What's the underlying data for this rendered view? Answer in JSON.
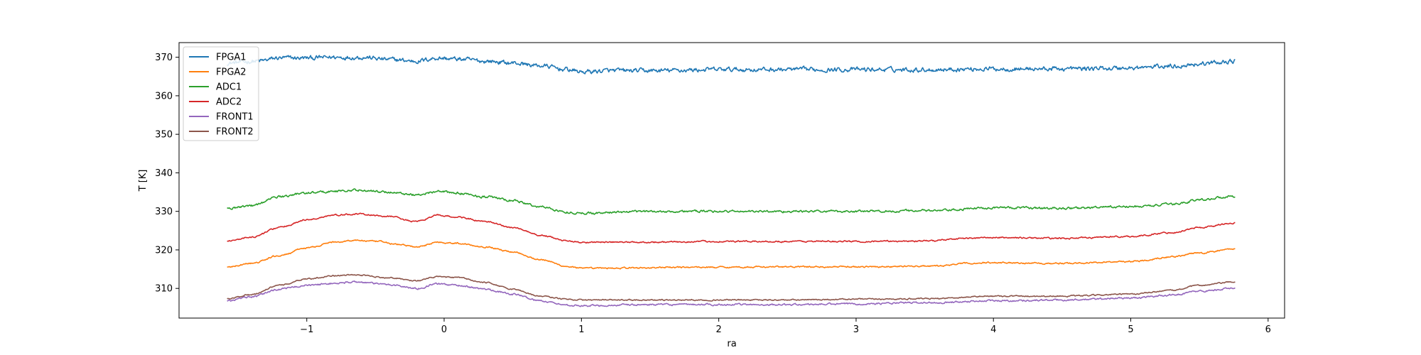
{
  "chart_data": {
    "type": "line",
    "title": "",
    "xlabel": "ra",
    "ylabel": "T [K]",
    "xlim": [
      -1.93,
      6.12
    ],
    "ylim": [
      302.3,
      373.8
    ],
    "xticks": [
      -1,
      0,
      1,
      2,
      3,
      4,
      5,
      6
    ],
    "yticks": [
      310,
      320,
      330,
      340,
      350,
      360,
      370
    ],
    "xtick_labels": [
      "−1",
      "0",
      "1",
      "2",
      "3",
      "4",
      "5",
      "6"
    ],
    "ytick_labels": [
      "310",
      "320",
      "330",
      "340",
      "350",
      "360",
      "370"
    ],
    "legend_position": "top-left",
    "grid": false,
    "x_range": [
      -1.58,
      5.76
    ],
    "series": [
      {
        "name": "FPGA1",
        "color": "#1f77b4",
        "noise": 0.9,
        "points": [
          [
            -1.58,
            368.5
          ],
          [
            -1.35,
            369.0
          ],
          [
            -1.2,
            369.8
          ],
          [
            -1.0,
            369.8
          ],
          [
            -0.8,
            370.0
          ],
          [
            -0.6,
            370.0
          ],
          [
            -0.4,
            369.4
          ],
          [
            -0.2,
            369.0
          ],
          [
            -0.05,
            369.8
          ],
          [
            0.1,
            369.5
          ],
          [
            0.3,
            369.0
          ],
          [
            0.5,
            368.5
          ],
          [
            0.7,
            367.8
          ],
          [
            0.9,
            366.8
          ],
          [
            1.0,
            366.2
          ],
          [
            1.2,
            366.5
          ],
          [
            1.5,
            366.5
          ],
          [
            2.0,
            366.8
          ],
          [
            2.5,
            366.8
          ],
          [
            3.0,
            366.8
          ],
          [
            3.5,
            366.8
          ],
          [
            4.0,
            367.0
          ],
          [
            4.5,
            367.0
          ],
          [
            5.0,
            367.2
          ],
          [
            5.3,
            367.7
          ],
          [
            5.5,
            368.3
          ],
          [
            5.76,
            369.0
          ]
        ]
      },
      {
        "name": "FPGA2",
        "color": "#ff7f0e",
        "noise": 0.3,
        "points": [
          [
            -1.58,
            315.5
          ],
          [
            -1.4,
            316.5
          ],
          [
            -1.2,
            318.5
          ],
          [
            -1.0,
            320.5
          ],
          [
            -0.8,
            322.0
          ],
          [
            -0.65,
            322.5
          ],
          [
            -0.5,
            322.2
          ],
          [
            -0.3,
            321.3
          ],
          [
            -0.2,
            320.7
          ],
          [
            -0.05,
            322.0
          ],
          [
            0.1,
            321.7
          ],
          [
            0.3,
            320.8
          ],
          [
            0.5,
            319.5
          ],
          [
            0.7,
            317.5
          ],
          [
            0.9,
            315.7
          ],
          [
            1.0,
            315.2
          ],
          [
            1.3,
            315.3
          ],
          [
            1.8,
            315.5
          ],
          [
            2.5,
            315.6
          ],
          [
            3.0,
            315.6
          ],
          [
            3.6,
            315.8
          ],
          [
            3.8,
            316.5
          ],
          [
            4.0,
            316.7
          ],
          [
            4.5,
            316.5
          ],
          [
            5.0,
            317.0
          ],
          [
            5.3,
            318.2
          ],
          [
            5.5,
            319.2
          ],
          [
            5.76,
            320.3
          ]
        ]
      },
      {
        "name": "ADC1",
        "color": "#2ca02c",
        "noise": 0.45,
        "points": [
          [
            -1.58,
            330.8
          ],
          [
            -1.4,
            331.5
          ],
          [
            -1.2,
            333.8
          ],
          [
            -1.0,
            334.8
          ],
          [
            -0.8,
            335.2
          ],
          [
            -0.65,
            335.5
          ],
          [
            -0.4,
            335.0
          ],
          [
            -0.2,
            334.3
          ],
          [
            -0.05,
            335.2
          ],
          [
            0.1,
            334.7
          ],
          [
            0.3,
            333.8
          ],
          [
            0.5,
            332.8
          ],
          [
            0.7,
            331.2
          ],
          [
            0.9,
            329.8
          ],
          [
            1.0,
            329.5
          ],
          [
            1.3,
            329.8
          ],
          [
            1.5,
            330.0
          ],
          [
            2.0,
            330.0
          ],
          [
            2.5,
            330.0
          ],
          [
            3.0,
            330.0
          ],
          [
            3.6,
            330.2
          ],
          [
            4.0,
            331.0
          ],
          [
            4.5,
            330.8
          ],
          [
            5.0,
            331.2
          ],
          [
            5.3,
            331.8
          ],
          [
            5.5,
            333.0
          ],
          [
            5.76,
            334.0
          ]
        ]
      },
      {
        "name": "ADC2",
        "color": "#d62728",
        "noise": 0.3,
        "points": [
          [
            -1.58,
            322.3
          ],
          [
            -1.4,
            323.3
          ],
          [
            -1.2,
            325.8
          ],
          [
            -1.0,
            327.8
          ],
          [
            -0.8,
            329.0
          ],
          [
            -0.65,
            329.3
          ],
          [
            -0.4,
            328.7
          ],
          [
            -0.2,
            327.3
          ],
          [
            -0.05,
            329.0
          ],
          [
            0.1,
            328.5
          ],
          [
            0.3,
            327.3
          ],
          [
            0.5,
            325.8
          ],
          [
            0.7,
            323.8
          ],
          [
            0.9,
            322.3
          ],
          [
            1.0,
            322.0
          ],
          [
            1.5,
            322.0
          ],
          [
            2.0,
            322.2
          ],
          [
            2.5,
            322.2
          ],
          [
            3.0,
            322.2
          ],
          [
            3.5,
            322.3
          ],
          [
            3.8,
            323.0
          ],
          [
            4.0,
            323.2
          ],
          [
            4.5,
            323.0
          ],
          [
            5.0,
            323.5
          ],
          [
            5.3,
            324.5
          ],
          [
            5.5,
            325.8
          ],
          [
            5.76,
            327.0
          ]
        ]
      },
      {
        "name": "FRONT1",
        "color": "#9467bd",
        "noise": 0.35,
        "points": [
          [
            -1.58,
            306.8
          ],
          [
            -1.4,
            307.8
          ],
          [
            -1.2,
            309.8
          ],
          [
            -1.0,
            310.8
          ],
          [
            -0.8,
            311.3
          ],
          [
            -0.65,
            311.7
          ],
          [
            -0.4,
            311.0
          ],
          [
            -0.2,
            310.0
          ],
          [
            -0.05,
            311.2
          ],
          [
            0.1,
            310.8
          ],
          [
            0.3,
            309.8
          ],
          [
            0.5,
            308.5
          ],
          [
            0.7,
            306.8
          ],
          [
            0.9,
            305.7
          ],
          [
            1.0,
            305.5
          ],
          [
            1.5,
            305.8
          ],
          [
            2.0,
            305.8
          ],
          [
            2.5,
            305.8
          ],
          [
            3.0,
            306.0
          ],
          [
            3.5,
            306.3
          ],
          [
            4.0,
            306.8
          ],
          [
            4.5,
            307.0
          ],
          [
            5.0,
            307.5
          ],
          [
            5.3,
            308.3
          ],
          [
            5.5,
            309.3
          ],
          [
            5.76,
            310.0
          ]
        ]
      },
      {
        "name": "FRONT2",
        "color": "#8c564b",
        "noise": 0.25,
        "points": [
          [
            -1.58,
            307.3
          ],
          [
            -1.4,
            308.5
          ],
          [
            -1.2,
            310.8
          ],
          [
            -1.0,
            312.5
          ],
          [
            -0.8,
            313.3
          ],
          [
            -0.65,
            313.5
          ],
          [
            -0.4,
            312.8
          ],
          [
            -0.2,
            312.0
          ],
          [
            -0.05,
            313.0
          ],
          [
            0.1,
            312.8
          ],
          [
            0.3,
            311.5
          ],
          [
            0.5,
            309.8
          ],
          [
            0.7,
            308.0
          ],
          [
            0.9,
            307.2
          ],
          [
            1.0,
            307.0
          ],
          [
            1.5,
            307.0
          ],
          [
            2.0,
            307.0
          ],
          [
            2.5,
            307.0
          ],
          [
            3.0,
            307.2
          ],
          [
            3.5,
            307.3
          ],
          [
            4.0,
            308.0
          ],
          [
            4.5,
            308.0
          ],
          [
            5.0,
            308.5
          ],
          [
            5.3,
            309.5
          ],
          [
            5.5,
            310.8
          ],
          [
            5.76,
            311.7
          ]
        ]
      }
    ]
  }
}
